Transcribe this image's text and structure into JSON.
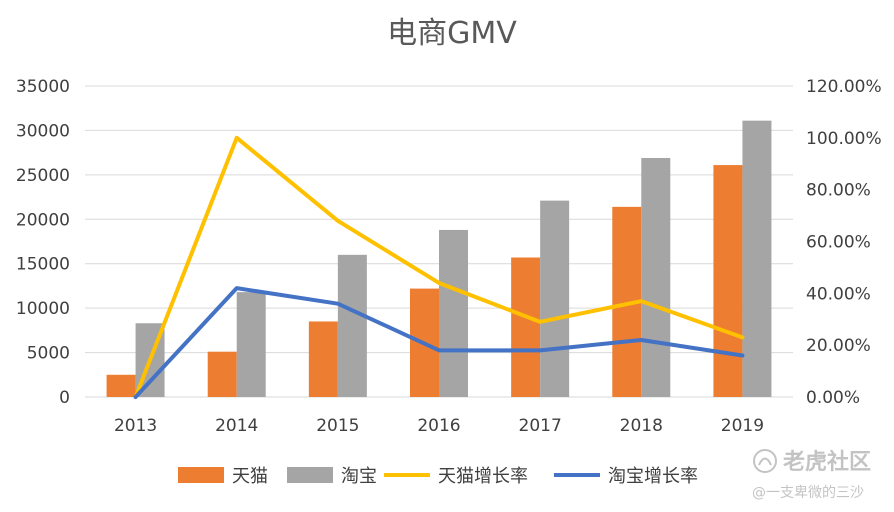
{
  "chart_data": {
    "type": "bar",
    "title": "电商GMV",
    "categories": [
      "2013",
      "2014",
      "2015",
      "2016",
      "2017",
      "2018",
      "2019"
    ],
    "y_left": {
      "ticks": [
        "0",
        "5000",
        "10000",
        "15000",
        "20000",
        "25000",
        "30000",
        "35000"
      ],
      "ylim": [
        0,
        35000
      ]
    },
    "y_right": {
      "ticks": [
        "0.00%",
        "20.00%",
        "40.00%",
        "60.00%",
        "80.00%",
        "100.00%",
        "120.00%"
      ],
      "ylim": [
        0,
        1.2
      ]
    },
    "grid": true,
    "legend_position": "bottom",
    "series": [
      {
        "name": "天猫",
        "kind": "bar",
        "axis": "left",
        "color": "#ED7D31",
        "values": [
          2500,
          5100,
          8500,
          12200,
          15700,
          21400,
          26100
        ]
      },
      {
        "name": "淘宝",
        "kind": "bar",
        "axis": "left",
        "color": "#A5A5A5",
        "values": [
          8300,
          11800,
          16000,
          18800,
          22100,
          26900,
          31100
        ]
      },
      {
        "name": "天猫增长率",
        "kind": "line",
        "axis": "right",
        "color": "#FFC000",
        "values": [
          0.0,
          1.0,
          0.68,
          0.44,
          0.29,
          0.37,
          0.23
        ]
      },
      {
        "name": "淘宝增长率",
        "kind": "line",
        "axis": "right",
        "color": "#4472C4",
        "values": [
          0.0,
          0.42,
          0.36,
          0.18,
          0.18,
          0.22,
          0.16
        ]
      }
    ]
  },
  "watermark": {
    "logo_text": "老虎社区",
    "handle": "@一支卑微的三沙",
    "icon": "tiger-logo-icon"
  }
}
